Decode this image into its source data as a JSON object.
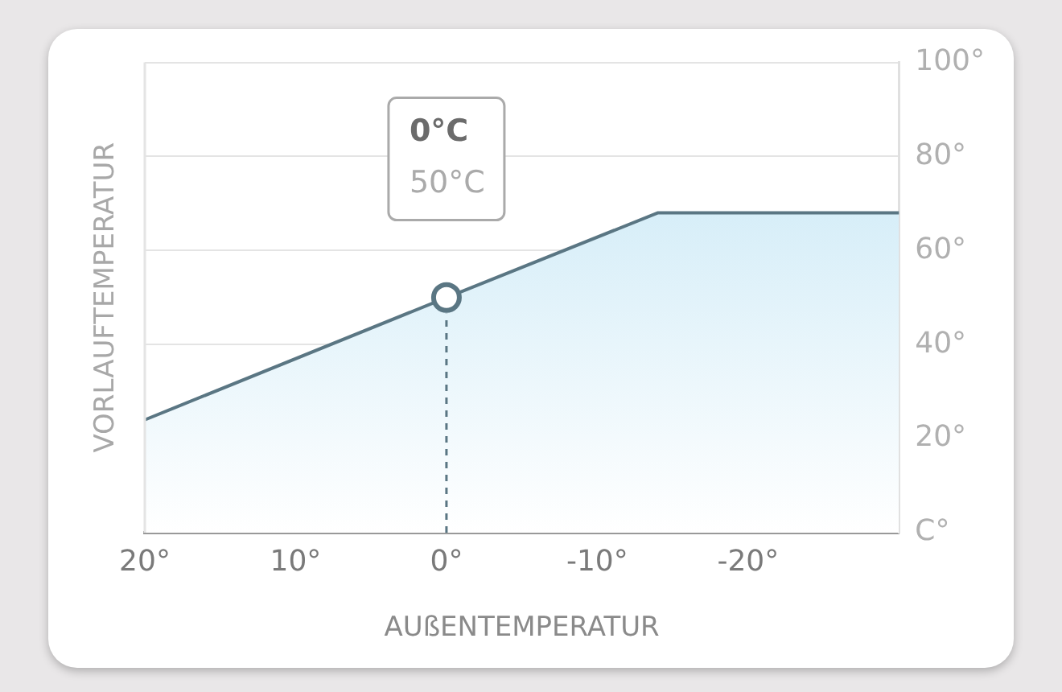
{
  "chart_data": {
    "type": "area",
    "xlabel": "AUßENTEMPERATUR",
    "ylabel": "VORLAUFTEMPERATUR",
    "x": [
      20,
      0,
      -14,
      -30
    ],
    "series": [
      {
        "color": "#5a7683",
        "values": [
          24,
          50,
          68,
          68
        ]
      },
      {
        "type": "scatter",
        "color": "#5a7683",
        "marker": "circle",
        "x": [
          0
        ],
        "values": [
          50
        ]
      }
    ],
    "xlim": [
      20,
      -30
    ],
    "xticks": [
      {
        "value": 20,
        "label": "20°"
      },
      {
        "value": 10,
        "label": "10°"
      },
      {
        "value": 0,
        "label": "0°"
      },
      {
        "value": -10,
        "label": "-10°"
      },
      {
        "value": -20,
        "label": "-20°"
      }
    ],
    "ylim": [
      0,
      100
    ],
    "yticks": [
      {
        "value": 0,
        "label": "C°"
      },
      {
        "value": 20,
        "label": "20°"
      },
      {
        "value": 40,
        "label": "40°"
      },
      {
        "value": 60,
        "label": "60°"
      },
      {
        "value": 80,
        "label": "80°"
      },
      {
        "value": 100,
        "label": "100°"
      }
    ],
    "ref_lines": [
      {
        "axis": "x",
        "value": 0,
        "color": "#5a7683",
        "line_style": "dashed"
      }
    ],
    "annotations": [
      "0°C",
      "50°C"
    ],
    "grid": "y",
    "legend": false
  }
}
